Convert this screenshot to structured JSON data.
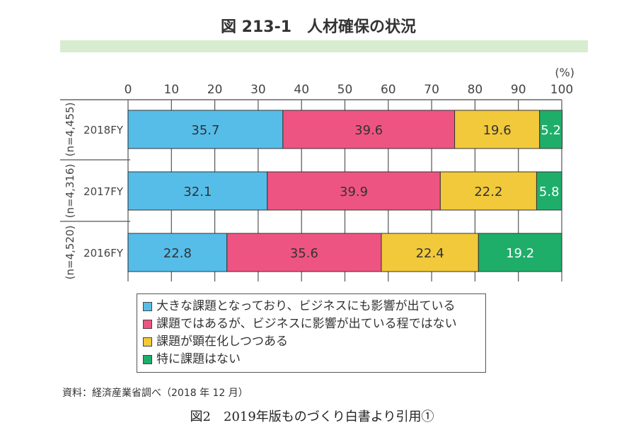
{
  "chart_data": {
    "type": "bar",
    "orientation": "horizontal-stacked",
    "title": "図 213-1　人材確保の状況",
    "unit_label": "(%)",
    "xlim": [
      0,
      100
    ],
    "ticks": [
      0,
      10,
      20,
      30,
      40,
      50,
      60,
      70,
      80,
      90,
      100
    ],
    "categories": [
      "2018FY",
      "2017FY",
      "2016FY"
    ],
    "sample_sizes": [
      "(n=4,455)",
      "(n=4,316)",
      "(n=4,520)"
    ],
    "series": [
      {
        "name": "大きな課題となっており、ビジネスにも影響が出ている",
        "color": "#56bde9",
        "values": [
          35.7,
          32.1,
          22.8
        ]
      },
      {
        "name": "課題ではあるが、ビジネスに影響が出ている程ではない",
        "color": "#ee5482",
        "values": [
          39.6,
          39.9,
          35.6
        ]
      },
      {
        "name": "課題が顕在化しつつある",
        "color": "#f1c93a",
        "values": [
          19.6,
          22.2,
          22.4
        ]
      },
      {
        "name": "特に課題はない",
        "color": "#1fae6a",
        "values": [
          5.2,
          5.8,
          19.2
        ]
      }
    ],
    "legend_position": "bottom",
    "source": "資料：経済産業省調べ（2018 年 12 月）"
  },
  "caption": "図2　2019年版ものづくり白書より引用①"
}
